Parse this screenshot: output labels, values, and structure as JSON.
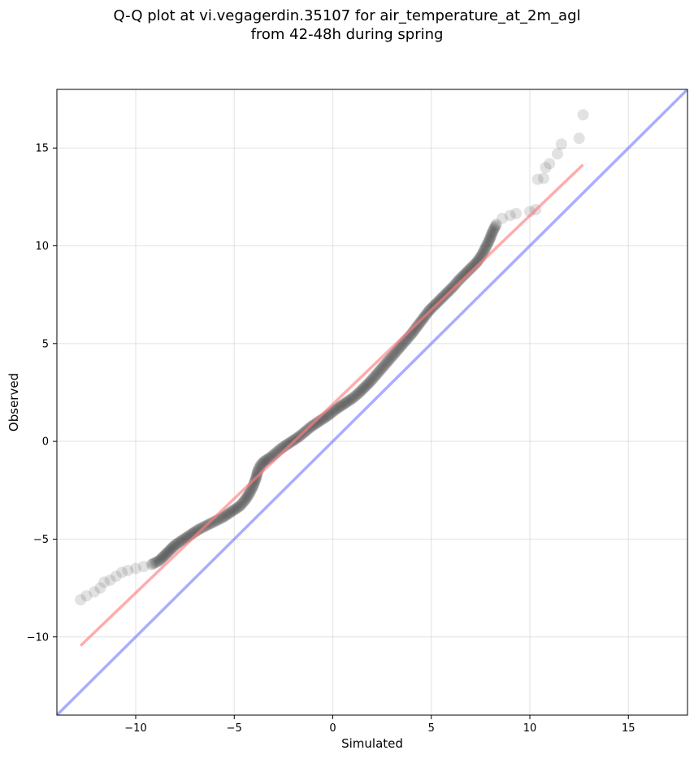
{
  "chart_data": {
    "type": "scatter",
    "title_line1": "Q-Q plot at vi.vegagerdin.35107 for air_temperature_at_2m_agl",
    "title_line2": "from 42-48h during spring",
    "xlabel": "Simulated",
    "ylabel": "Observed",
    "xlim": [
      -14.0,
      18.0
    ],
    "ylim": [
      -14.0,
      18.0
    ],
    "xticks": [
      -10,
      -5,
      0,
      5,
      10,
      15
    ],
    "yticks": [
      -10,
      -5,
      0,
      5,
      10,
      15
    ],
    "xtick_labels": [
      "−10",
      "−5",
      "0",
      "5",
      "10",
      "15"
    ],
    "ytick_labels": [
      "−10",
      "−5",
      "0",
      "5",
      "10",
      "15"
    ],
    "grid": true,
    "series": [
      {
        "kind": "points",
        "color": "#333333",
        "points": [
          [
            -12.8,
            -8.1
          ],
          [
            -12.5,
            -7.9
          ],
          [
            -12.1,
            -7.7
          ],
          [
            -11.8,
            -7.5
          ],
          [
            -11.6,
            -7.2
          ],
          [
            -11.3,
            -7.1
          ],
          [
            -11.0,
            -6.9
          ],
          [
            -10.7,
            -6.7
          ],
          [
            -10.4,
            -6.6
          ],
          [
            -10.0,
            -6.5
          ],
          [
            -9.6,
            -6.4
          ],
          [
            -9.2,
            -6.3
          ],
          [
            -8.8,
            -6.1
          ],
          [
            -8.6,
            -5.9
          ],
          [
            -8.4,
            -5.7
          ],
          [
            -8.2,
            -5.5
          ],
          [
            -8.0,
            -5.3
          ],
          [
            -7.7,
            -5.1
          ],
          [
            -7.4,
            -4.9
          ],
          [
            -7.1,
            -4.7
          ],
          [
            -6.8,
            -4.5
          ],
          [
            -6.5,
            -4.35
          ],
          [
            -6.2,
            -4.2
          ],
          [
            -5.9,
            -4.05
          ],
          [
            -5.6,
            -3.9
          ],
          [
            -5.3,
            -3.7
          ],
          [
            -5.0,
            -3.5
          ],
          [
            -4.7,
            -3.3
          ],
          [
            -4.45,
            -3.0
          ],
          [
            -4.25,
            -2.7
          ],
          [
            -4.05,
            -2.3
          ],
          [
            -3.9,
            -1.9
          ],
          [
            -3.8,
            -1.5
          ],
          [
            -3.65,
            -1.2
          ],
          [
            -3.45,
            -1.0
          ],
          [
            -3.2,
            -0.85
          ],
          [
            -2.9,
            -0.6
          ],
          [
            -2.6,
            -0.35
          ],
          [
            -2.3,
            -0.15
          ],
          [
            -2.0,
            0.05
          ],
          [
            -1.7,
            0.25
          ],
          [
            -1.4,
            0.5
          ],
          [
            -1.1,
            0.75
          ],
          [
            -0.8,
            0.95
          ],
          [
            -0.5,
            1.15
          ],
          [
            -0.2,
            1.35
          ],
          [
            0.1,
            1.6
          ],
          [
            0.4,
            1.8
          ],
          [
            0.7,
            2.0
          ],
          [
            1.0,
            2.2
          ],
          [
            1.3,
            2.45
          ],
          [
            1.6,
            2.75
          ],
          [
            1.9,
            3.05
          ],
          [
            2.2,
            3.4
          ],
          [
            2.5,
            3.75
          ],
          [
            2.8,
            4.1
          ],
          [
            3.1,
            4.45
          ],
          [
            3.4,
            4.8
          ],
          [
            3.7,
            5.15
          ],
          [
            4.0,
            5.5
          ],
          [
            4.3,
            5.9
          ],
          [
            4.6,
            6.3
          ],
          [
            4.9,
            6.7
          ],
          [
            5.2,
            7.0
          ],
          [
            5.5,
            7.3
          ],
          [
            5.8,
            7.6
          ],
          [
            6.1,
            7.9
          ],
          [
            6.4,
            8.25
          ],
          [
            6.7,
            8.55
          ],
          [
            7.0,
            8.85
          ],
          [
            7.3,
            9.15
          ],
          [
            7.55,
            9.5
          ],
          [
            7.75,
            9.9
          ],
          [
            7.95,
            10.3
          ],
          [
            8.1,
            10.7
          ],
          [
            8.3,
            11.1
          ],
          [
            8.6,
            11.4
          ],
          [
            9.0,
            11.55
          ],
          [
            9.3,
            11.65
          ],
          [
            10.0,
            11.75
          ],
          [
            10.3,
            11.85
          ],
          [
            10.4,
            13.4
          ],
          [
            10.7,
            13.45
          ],
          [
            10.8,
            14.0
          ],
          [
            11.0,
            14.2
          ],
          [
            11.4,
            14.7
          ],
          [
            11.6,
            15.2
          ],
          [
            12.5,
            15.5
          ],
          [
            12.7,
            16.7
          ]
        ]
      },
      {
        "kind": "line",
        "name": "",
        "color": "#ff8080",
        "points": [
          [
            -12.8,
            -10.45
          ],
          [
            12.7,
            14.15
          ]
        ]
      },
      {
        "kind": "line",
        "name": "",
        "color": "#8080ff",
        "points": [
          [
            -14.0,
            -14.0
          ],
          [
            18.0,
            18.0
          ]
        ]
      }
    ]
  }
}
